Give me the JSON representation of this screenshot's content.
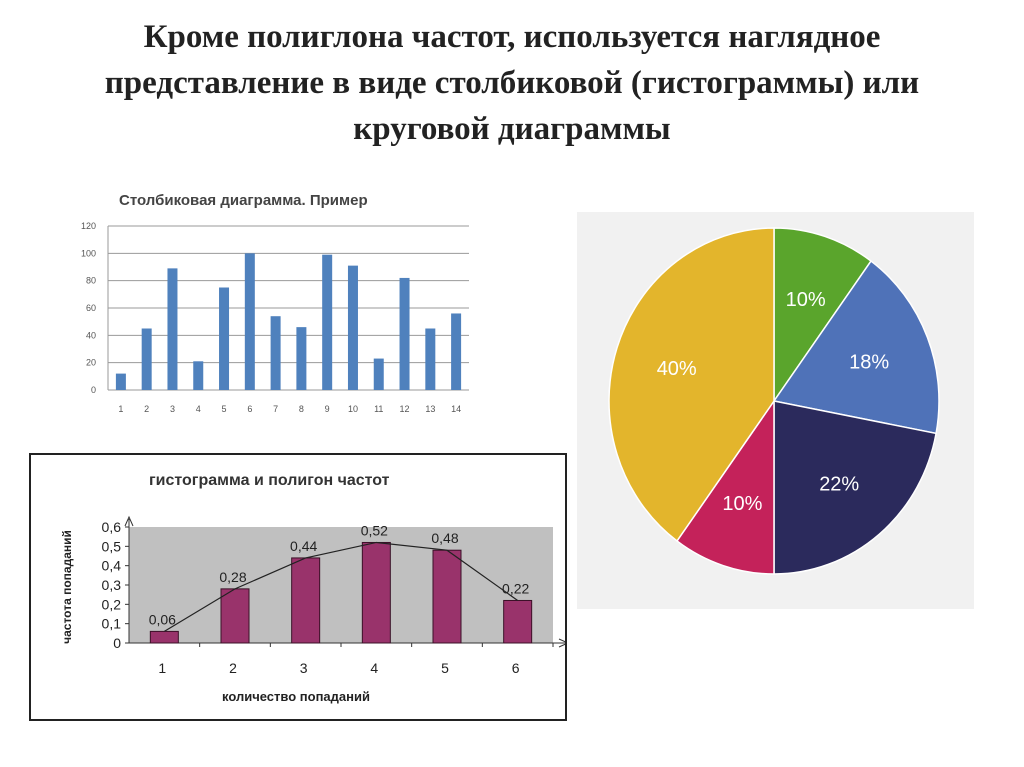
{
  "slide": {
    "title": "Кроме полиглона частот, используется наглядное представление в виде столбиковой (гистограммы) или круговой диаграммы"
  },
  "chart_data": [
    {
      "type": "bar",
      "title": "Столбиковая диаграмма. Пример",
      "categories": [
        "1",
        "2",
        "3",
        "4",
        "5",
        "6",
        "7",
        "8",
        "9",
        "10",
        "11",
        "12",
        "13",
        "14"
      ],
      "values": [
        12,
        45,
        89,
        21,
        75,
        100,
        54,
        46,
        99,
        91,
        23,
        82,
        45,
        56
      ],
      "ylim": [
        0,
        120
      ],
      "yticks": [
        "0",
        "20",
        "40",
        "60",
        "80",
        "100",
        "120"
      ],
      "grid": true,
      "color": "#4f81bd"
    },
    {
      "type": "bar",
      "title": "гистограмма и полигон частот",
      "xlabel": "количество попаданий",
      "ylabel": "частота попаданий",
      "categories": [
        "1",
        "2",
        "3",
        "4",
        "5",
        "6"
      ],
      "values": [
        0.06,
        0.28,
        0.44,
        0.52,
        0.48,
        0.22
      ],
      "value_labels": [
        "0,06",
        "0,28",
        "0,44",
        "0,52",
        "0,48",
        "0,22"
      ],
      "ylim": [
        0,
        0.6
      ],
      "yticks": [
        "0",
        "0,1",
        "0,2",
        "0,3",
        "0,4",
        "0,5",
        "0,6"
      ],
      "overlay": "line",
      "bar_color": "#99336b",
      "plot_background": "#c0c0c0"
    },
    {
      "type": "pie",
      "slices": [
        {
          "label": "10%",
          "value": 10,
          "color": "#5aa52c"
        },
        {
          "label": "18%",
          "value": 18,
          "color": "#4f72b8"
        },
        {
          "label": "22%",
          "value": 22,
          "color": "#2b2a5c"
        },
        {
          "label": "10%",
          "value": 10,
          "color": "#c4225a"
        },
        {
          "label": "40%",
          "value": 40,
          "color": "#e3b52c"
        }
      ]
    }
  ]
}
